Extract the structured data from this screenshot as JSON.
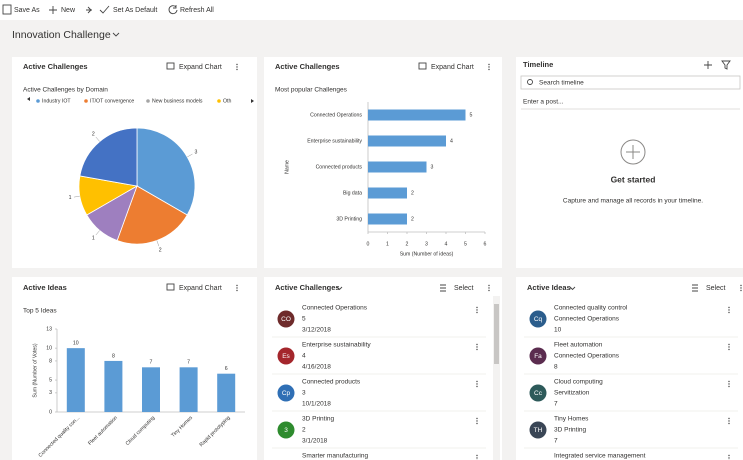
{
  "toolbar": [
    "Save As",
    "New",
    "Set As Default",
    "Refresh All"
  ],
  "title": "Innovation Challenge",
  "domain_chart": {
    "header": "Active Challenges",
    "action": "Expand Chart",
    "chart_data": {
      "type": "pie",
      "title": "Active Challenges by Domain",
      "legend": [
        {
          "name": "Industry IOT",
          "color": "#5b9bd5"
        },
        {
          "name": "IT/OT convergence",
          "color": "#ed7d31"
        },
        {
          "name": "New business models",
          "color": "#a5a5a5"
        },
        {
          "name": "Oth",
          "color": "#ffc000"
        }
      ],
      "values": [
        3,
        2,
        1,
        1,
        2
      ],
      "colors": [
        "#5b9bd5",
        "#ed7d31",
        "#9e7fbf",
        "#ffc000",
        "#4472c4"
      ]
    }
  },
  "popular_chart": {
    "header": "Active Challenges",
    "action": "Expand Chart",
    "chart_data": {
      "type": "hbar",
      "title": "Most popular Challenges",
      "categories": [
        "Connected Operations",
        "Enterprise sustainability",
        "Connected products",
        "Big data",
        "3D Printing"
      ],
      "values": [
        5,
        4,
        3,
        2,
        2
      ],
      "color": "#5b9bd5",
      "xlim": [
        0,
        6
      ],
      "xticks": [
        0,
        1,
        2,
        3,
        4,
        5,
        6
      ],
      "xlabel": "Sum (Number of ideas)",
      "ylabel": "Name"
    }
  },
  "timeline": {
    "header": "Timeline",
    "search": "Search timeline",
    "post": "Enter a post...",
    "empty_title": "Get started",
    "empty_text": "Capture and manage all records in your timeline."
  },
  "ideas_chart": {
    "header": "Active Ideas",
    "action": "Expand Chart",
    "chart_data": {
      "type": "bar",
      "title": "Top 5 Ideas",
      "categories": [
        "Connected quality con...",
        "Fleet automation",
        "Cloud computing",
        "Tiny Homes",
        "Rapid prototyping"
      ],
      "values": [
        10,
        8,
        7,
        7,
        6
      ],
      "color": "#5b9bd5",
      "ylim": [
        0,
        13
      ],
      "yticks": [
        0,
        3,
        5,
        8,
        10,
        13
      ],
      "ylabel": "Sum (Number of Votes)"
    }
  },
  "challenge_list": {
    "header": "Active Challenges",
    "action": "Select",
    "items": [
      {
        "initials": "CO",
        "color": "#6e2b2b",
        "lines": [
          "Connected Operations",
          5,
          "3/12/2018"
        ]
      },
      {
        "initials": "Es",
        "color": "#a4262c",
        "lines": [
          "Enterprise sustainability",
          4,
          "4/16/2018"
        ]
      },
      {
        "initials": "Cp",
        "color": "#2f6fb5",
        "lines": [
          "Connected products",
          3,
          "10/1/2018"
        ]
      },
      {
        "initials": "3",
        "color": "#2e8b2e",
        "lines": [
          "3D Printing",
          2,
          "3/1/2018"
        ]
      },
      {
        "lines": [
          "Smarter manufacturing"
        ]
      }
    ]
  },
  "idea_list": {
    "header": "Active Ideas",
    "action": "Select",
    "items": [
      {
        "initials": "Cq",
        "color": "#2b5d8c",
        "lines": [
          "Connected quality control",
          "Connected Operations",
          10
        ]
      },
      {
        "initials": "Fa",
        "color": "#5b2c4f",
        "lines": [
          "Fleet automation",
          "Connected Operations",
          8
        ]
      },
      {
        "initials": "Cc",
        "color": "#2d5a5a",
        "lines": [
          "Cloud computing",
          "Servitization",
          7
        ]
      },
      {
        "initials": "TH",
        "color": "#3a4656",
        "lines": [
          "Tiny Homes",
          "3D Printing",
          7
        ]
      },
      {
        "lines": [
          "Integrated service management"
        ]
      }
    ]
  }
}
